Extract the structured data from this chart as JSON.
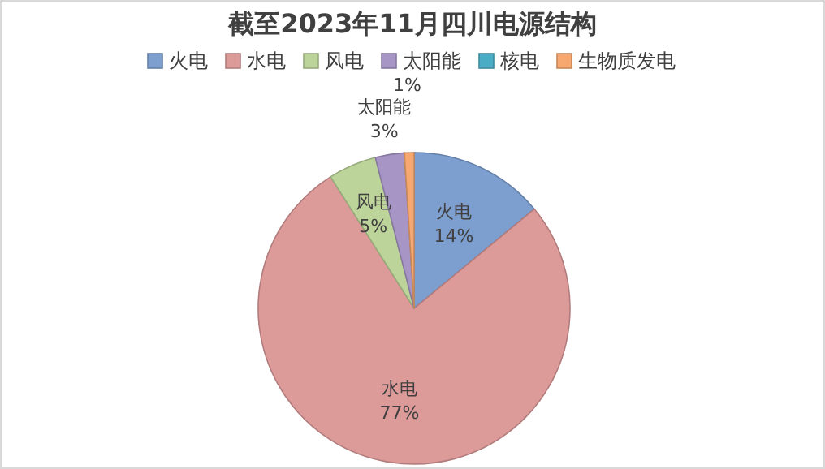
{
  "chart_data": {
    "type": "pie",
    "title": "截至2023年11月四川电源结构",
    "categories": [
      "火电",
      "水电",
      "风电",
      "太阳能",
      "核电",
      "生物质发电"
    ],
    "values": [
      14,
      77,
      5,
      3,
      0,
      1
    ],
    "colors": [
      "#7d9fd0",
      "#dc9a99",
      "#bcd49a",
      "#a795c6",
      "#4bacc6",
      "#f6a870"
    ],
    "value_labels": [
      "火电 14%",
      "水电 77%",
      "风电 5%",
      "太阳能 3%",
      null,
      "1%"
    ],
    "legend": "top"
  }
}
